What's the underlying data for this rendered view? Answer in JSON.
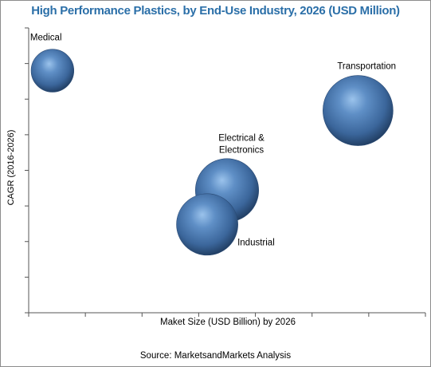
{
  "chart_data": {
    "type": "bubble",
    "title": "High Performance Plastics, by End-Use Industry, 2026 (USD Million)",
    "xlabel": "Maket Size (USD Billion)  by 2026",
    "ylabel": "CAGR (2016-2026)",
    "source": "Source: MarketsandMarkets Analysis",
    "xlim": [
      0,
      100
    ],
    "ylim": [
      0,
      100
    ],
    "grid": false,
    "legend": "none",
    "bubble_color": "#3f6da3",
    "points": [
      {
        "label": [
          "Medical"
        ],
        "x": 6,
        "y": 85,
        "size": 16
      },
      {
        "label": [
          "Transportation"
        ],
        "x": 83,
        "y": 71,
        "size": 43
      },
      {
        "label": [
          "Electrical &",
          "Electronics"
        ],
        "x": 50,
        "y": 43,
        "size": 35
      },
      {
        "label": [
          "Industrial"
        ],
        "x": 45,
        "y": 31,
        "size": 33
      }
    ]
  }
}
